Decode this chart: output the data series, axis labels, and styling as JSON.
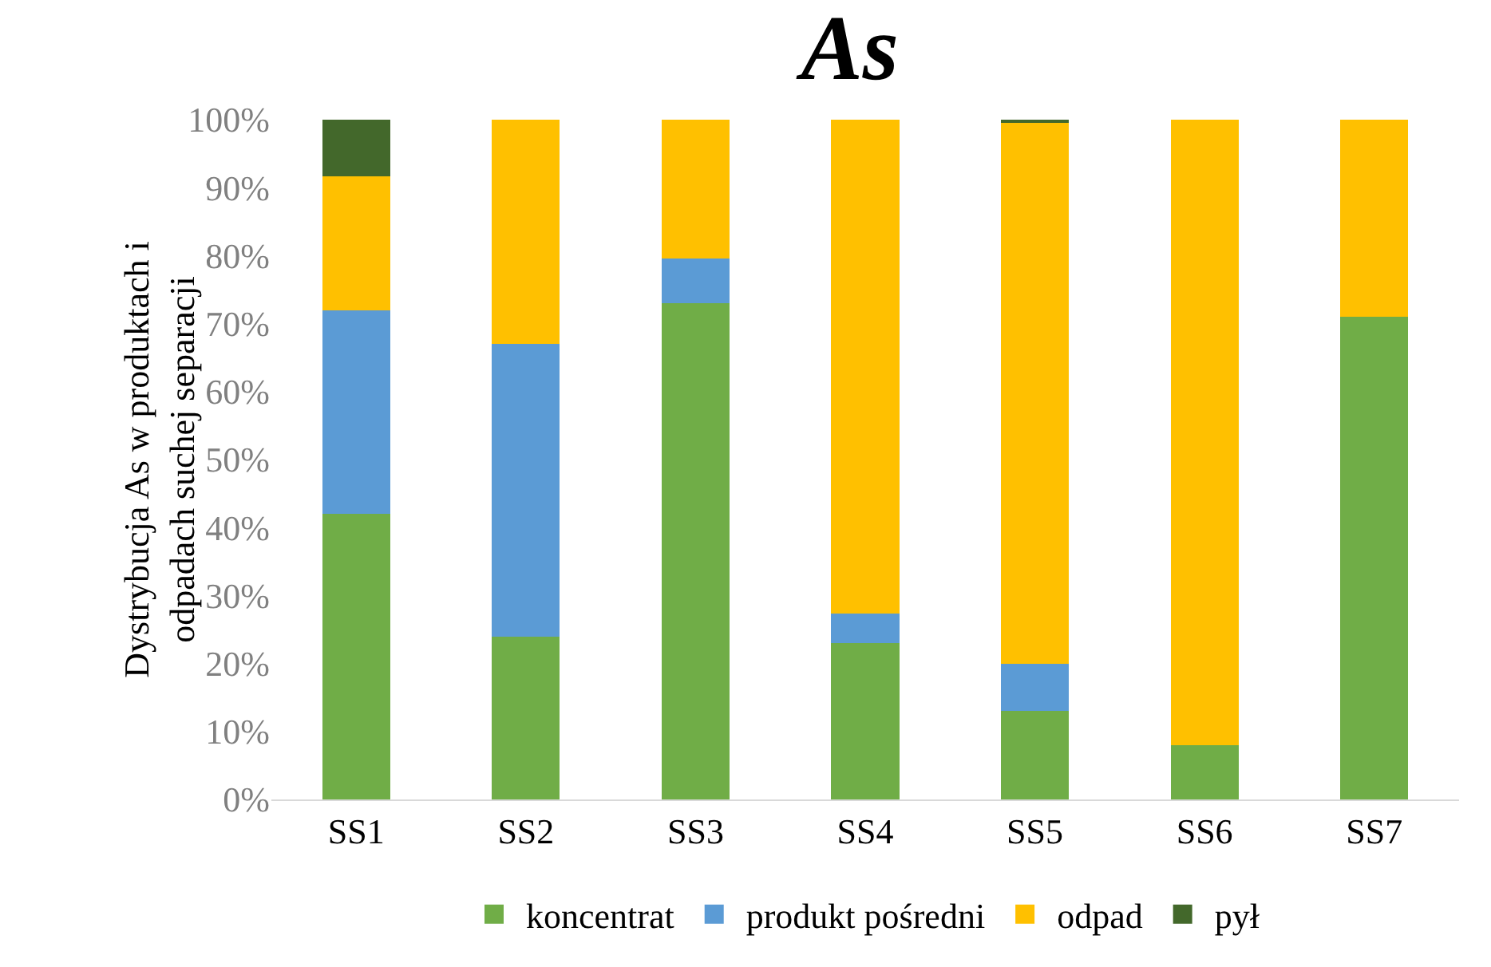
{
  "chart_data": {
    "type": "bar",
    "stacked": true,
    "title": "As",
    "ylabel": "Dystrybucja As w produktach i odpadach suchej separacji",
    "categories": [
      "SS1",
      "SS2",
      "SS3",
      "SS4",
      "SS5",
      "SS6",
      "SS7"
    ],
    "series": [
      {
        "name": "koncentrat",
        "color": "#70ad47",
        "values": [
          42,
          24,
          73,
          23,
          13,
          8,
          71
        ]
      },
      {
        "name": "produkt pośredni",
        "color": "#5b9bd5",
        "values": [
          30,
          43,
          6.6,
          4.4,
          7,
          0,
          0
        ]
      },
      {
        "name": "odpad",
        "color": "#ffc000",
        "values": [
          19.7,
          33,
          20.4,
          72.6,
          79.6,
          92,
          29
        ]
      },
      {
        "name": "pył",
        "color": "#43682b",
        "values": [
          8.3,
          0,
          0,
          0,
          0.4,
          0,
          0
        ]
      }
    ],
    "ylim": [
      0,
      100
    ],
    "yticks": [
      {
        "value": 0,
        "label": "0%"
      },
      {
        "value": 10,
        "label": "10%"
      },
      {
        "value": 20,
        "label": "20%"
      },
      {
        "value": 30,
        "label": "30%"
      },
      {
        "value": 40,
        "label": "40%"
      },
      {
        "value": 50,
        "label": "50%"
      },
      {
        "value": 60,
        "label": "60%"
      },
      {
        "value": 70,
        "label": "70%"
      },
      {
        "value": 80,
        "label": "80%"
      },
      {
        "value": 90,
        "label": "90%"
      },
      {
        "value": 100,
        "label": "100%"
      }
    ],
    "grid": false,
    "legend": "bottom"
  }
}
